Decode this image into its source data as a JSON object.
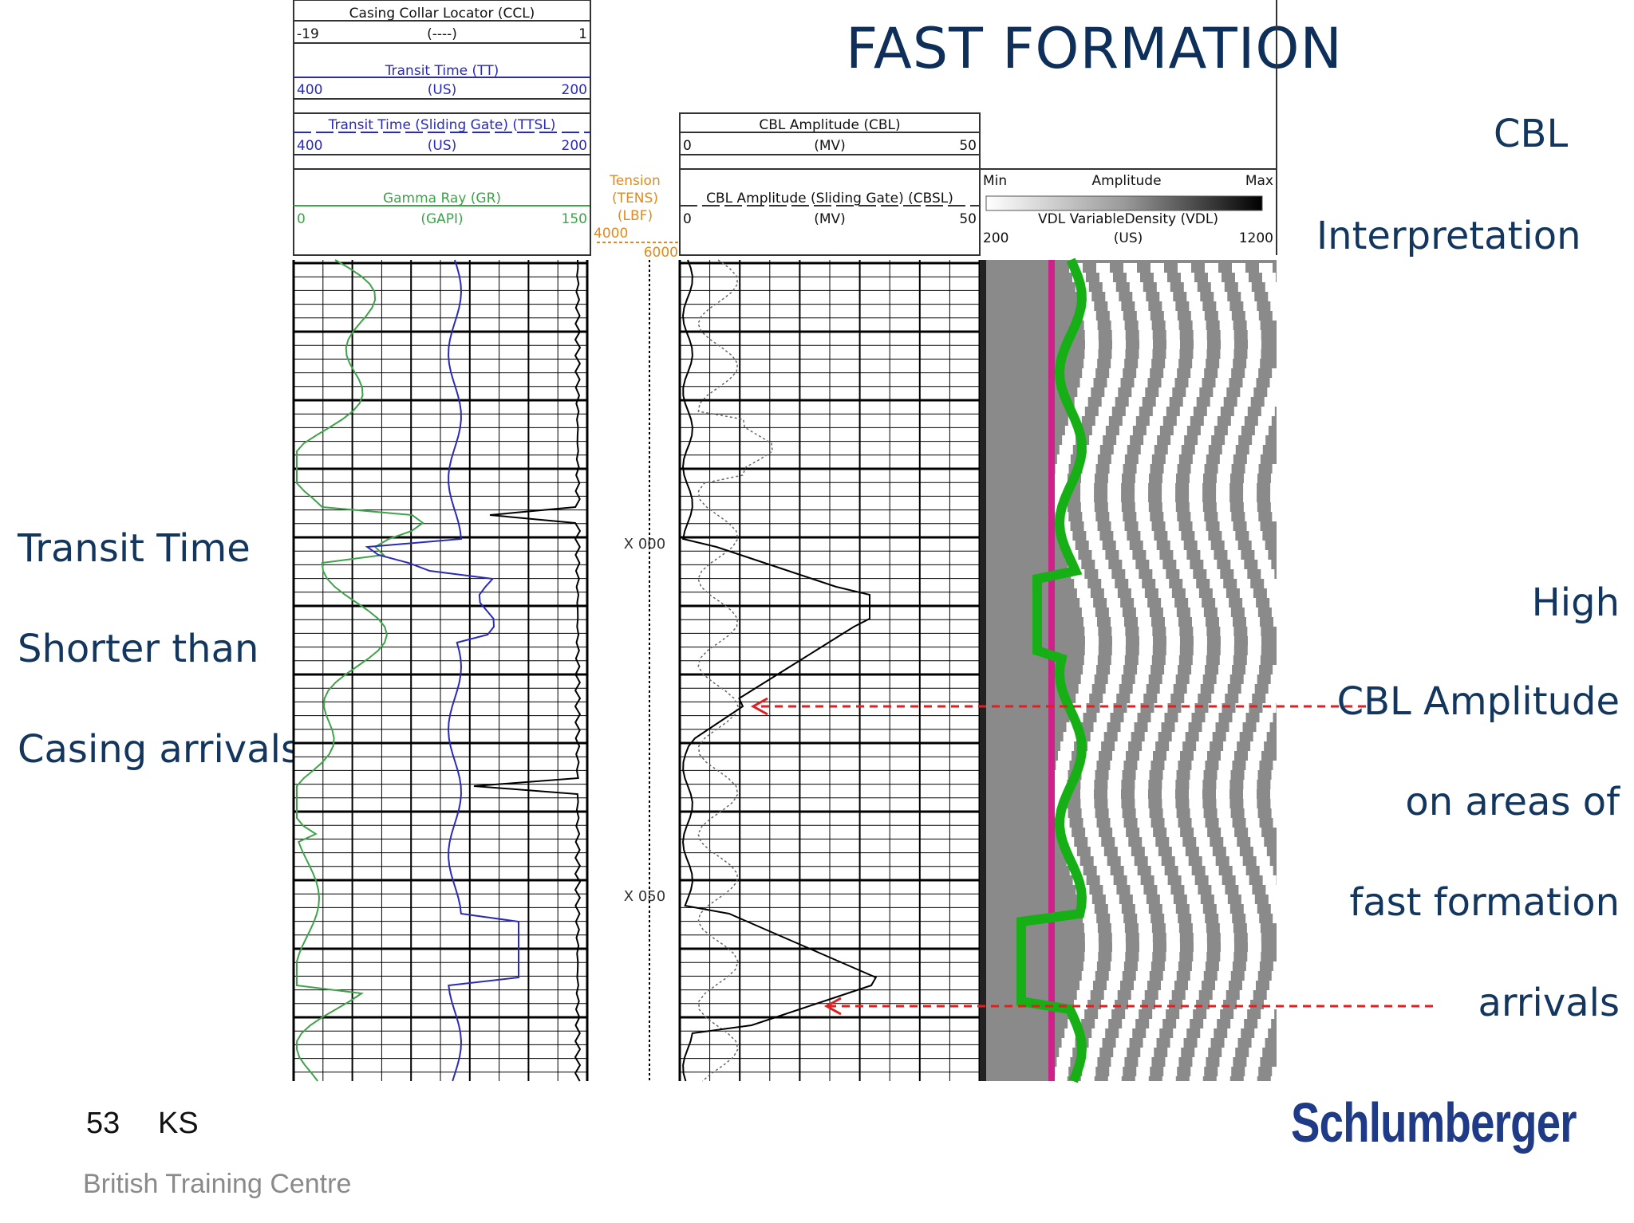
{
  "slide": {
    "title": "FAST FORMATION",
    "right_labels": [
      "CBL",
      "Interpretation"
    ],
    "left_annotation": [
      "Transit Time",
      "Shorter than",
      "Casing arrivals"
    ],
    "right_annotation": [
      "High",
      "CBL Amplitude",
      "on areas of",
      "fast formation",
      "arrivals"
    ],
    "slide_number": "53",
    "author": "KS",
    "organization": "British Training Centre",
    "logo": "Schlumberger"
  },
  "log_header": {
    "ccl": {
      "title": "Casing Collar Locator (CCL)",
      "min": "-19",
      "unit": "(----)",
      "max": "1"
    },
    "tt": {
      "title": "Transit Time (TT)",
      "min": "400",
      "unit": "(US)",
      "max": "200"
    },
    "ttsl": {
      "title": "Transit Time (Sliding Gate) (TTSL)",
      "min": "400",
      "unit": "(US)",
      "max": "200"
    },
    "gr": {
      "title": "Gamma Ray (GR)",
      "min": "0",
      "unit": "(GAPI)",
      "max": "150"
    },
    "tens": {
      "title": "Tension",
      "mnemonic": "(TENS)",
      "unit": "(LBF)",
      "min": "4000",
      "max": "6000"
    },
    "cbl": {
      "title": "CBL Amplitude (CBL)",
      "min": "0",
      "unit": "(MV)",
      "max": "50"
    },
    "cbsl": {
      "title": "CBL Amplitude (Sliding Gate) (CBSL)",
      "min": "0",
      "unit": "(MV)",
      "max": "50"
    },
    "vdl": {
      "amp_min": "Min",
      "amp_label": "Amplitude",
      "amp_max": "Max",
      "title": "VDL VariableDensity (VDL)",
      "min": "200",
      "unit": "(US)",
      "max": "1200"
    }
  },
  "depth_labels": [
    "X 000",
    "X 050"
  ],
  "colors": {
    "title_blue": "#0e2f5a",
    "gamma_ray": "#3ea34a",
    "transit_time": "#2a2ab8",
    "tension": "#e08a1e",
    "arrow_red": "#e02020",
    "casing_line": "#d0208a",
    "vdl_green": "#16b016",
    "logo_blue": "#1f3a86"
  }
}
